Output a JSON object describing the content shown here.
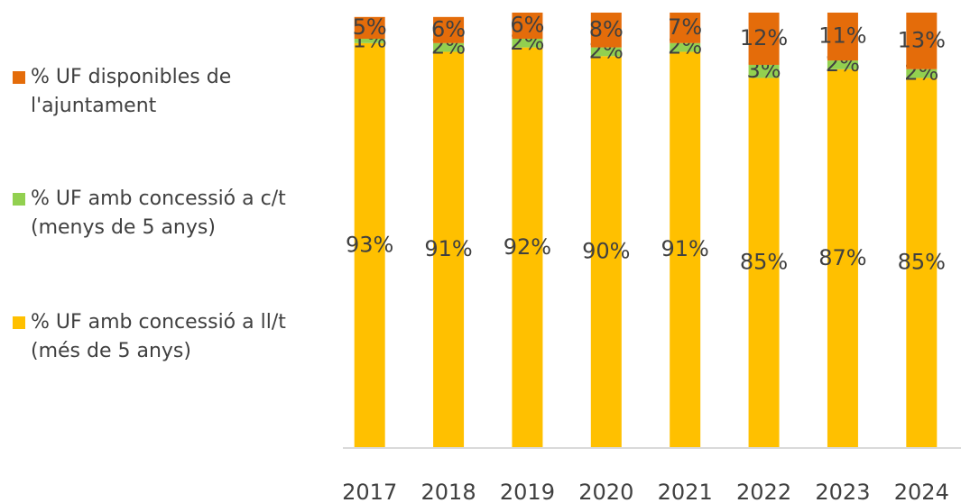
{
  "chart_data": {
    "type": "stacked_bar",
    "categories": [
      "2017",
      "2018",
      "2019",
      "2020",
      "2021",
      "2022",
      "2023",
      "2024"
    ],
    "series": [
      {
        "name": "% UF amb concessió a ll/t (més de 5 anys)",
        "color": "#ffc000",
        "values": [
          93,
          91,
          92,
          90,
          91,
          85,
          87,
          85
        ],
        "value_labels": [
          "93%",
          "91%",
          "92%",
          "90%",
          "91%",
          "85%",
          "87%",
          "85%"
        ]
      },
      {
        "name": "% UF amb concessió a c/t (menys de 5 anys)",
        "color": "#92d050",
        "values": [
          1,
          2,
          2,
          2,
          2,
          3,
          2,
          2
        ],
        "value_labels": [
          "1%",
          "2%",
          "2%",
          "2%",
          "2%",
          "3%",
          "2%",
          "2%"
        ]
      },
      {
        "name": "% UF disponibles de l'ajuntament",
        "color": "#e46c0a",
        "values": [
          5,
          6,
          6,
          8,
          7,
          12,
          11,
          13
        ],
        "value_labels": [
          "5%",
          "6%",
          "6%",
          "8%",
          "7%",
          "12%",
          "11%",
          "13%"
        ]
      }
    ],
    "ylim": [
      0,
      100
    ],
    "legend": "left"
  }
}
